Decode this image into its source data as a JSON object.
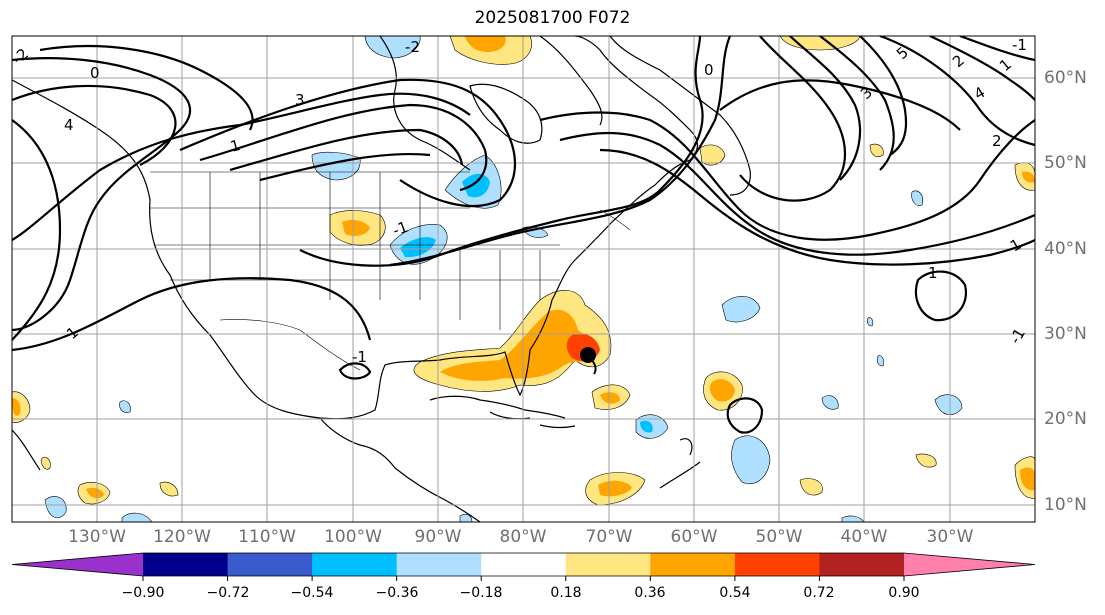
{
  "title": "2025081700 F072",
  "map": {
    "projection": "lat-lon",
    "lat_labels": [
      "60°N",
      "50°N",
      "40°N",
      "30°N",
      "20°N",
      "10°N"
    ],
    "lon_labels": [
      "130°W",
      "120°W",
      "110°W",
      "100°W",
      "90°W",
      "80°W",
      "70°W",
      "60°W",
      "50°W",
      "40°W",
      "30°W"
    ],
    "contour_labels": [
      "-2",
      "0",
      "1",
      "3",
      "4",
      "1",
      "-1",
      "0",
      "5",
      "2",
      "1",
      "3",
      "4",
      "2",
      "-1",
      "1",
      "1",
      "-1",
      "-2",
      "-1"
    ],
    "storm_marker": "hurricane-center",
    "grid": true
  },
  "colorbar": {
    "ticks": [
      "−0.90",
      "−0.72",
      "−0.54",
      "−0.36",
      "−0.18",
      "0.18",
      "0.36",
      "0.54",
      "0.72",
      "0.90"
    ],
    "colors": [
      "#9932cc",
      "#00008b",
      "#3a5bcc",
      "#00bfff",
      "#b0e0ff",
      "#ffffff",
      "#ffe680",
      "#ffa500",
      "#ff4000",
      "#b22222",
      "#ff80aa"
    ],
    "extend": "both"
  }
}
